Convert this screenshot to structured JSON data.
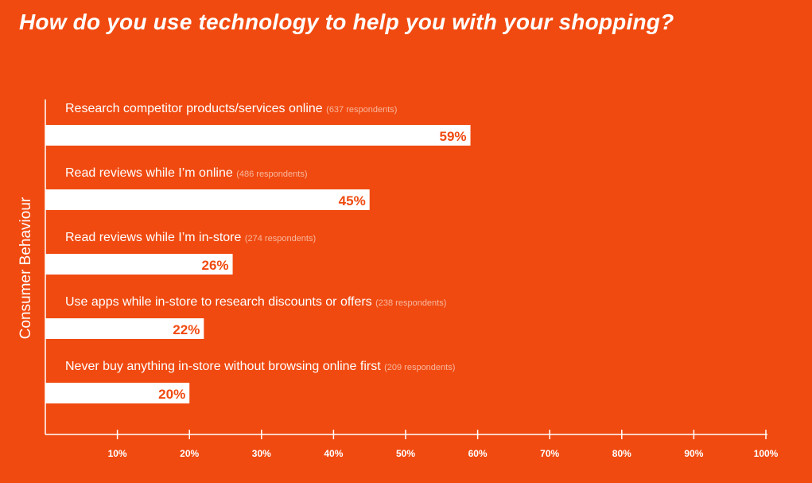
{
  "title": "How do you use technology to help you with your shopping?",
  "colors": {
    "background": "#F04A10",
    "bar": "#FFFFFF",
    "value_text": "#F04A10",
    "label_text": "#FFFFFF",
    "respondents_text": "#F8B79E",
    "axis": "#FFFFFF"
  },
  "chart_data": {
    "type": "bar",
    "orientation": "horizontal",
    "ylabel": "Consumer Behaviour",
    "xlim": [
      0,
      100
    ],
    "xticks": [
      10,
      20,
      30,
      40,
      50,
      60,
      70,
      80,
      90,
      100
    ],
    "xtick_labels": [
      "10%",
      "20%",
      "30%",
      "40%",
      "50%",
      "60%",
      "70%",
      "80%",
      "90%",
      "100%"
    ],
    "categories": [
      "Research competitor products/services online",
      "Read reviews while I’m online",
      "Read reviews while I’m in-store",
      "Use apps while in-store to research discounts or offers",
      "Never buy anything in-store without browsing online first"
    ],
    "respondents": [
      "(637 respondents)",
      "(486 respondents)",
      "(274 respondents)",
      "(238 respondents)",
      "(209 respondents)"
    ],
    "values": [
      59,
      45,
      26,
      22,
      20
    ],
    "value_labels": [
      "59%",
      "45%",
      "26%",
      "22%",
      "20%"
    ],
    "grid": false,
    "legend": "none"
  }
}
